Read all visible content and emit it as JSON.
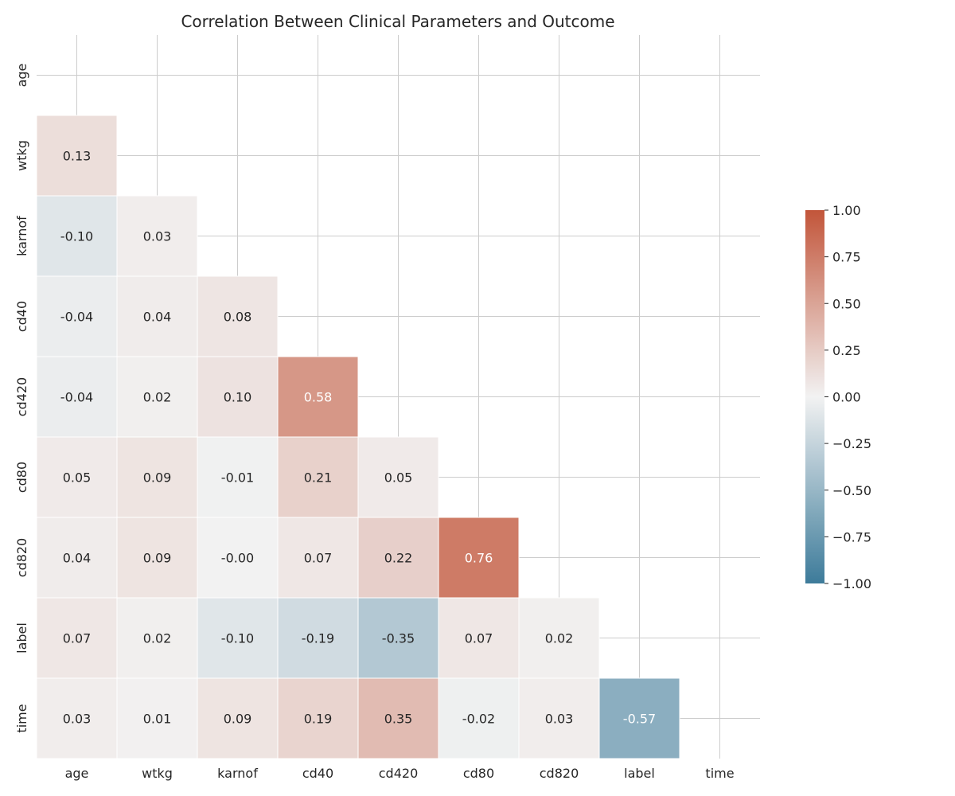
{
  "chart_data": {
    "type": "heatmap",
    "title": "Correlation Between Clinical Parameters and Outcome",
    "xlabel": "",
    "ylabel": "",
    "variables": [
      "age",
      "wtkg",
      "karnof",
      "cd40",
      "cd420",
      "cd80",
      "cd820",
      "label",
      "time"
    ],
    "mask": "upper-triangle-including-diagonal",
    "cells": [
      {
        "row": "wtkg",
        "col": "age",
        "value": 0.13,
        "label": "0.13"
      },
      {
        "row": "karnof",
        "col": "age",
        "value": -0.1,
        "label": "-0.10"
      },
      {
        "row": "karnof",
        "col": "wtkg",
        "value": 0.03,
        "label": "0.03"
      },
      {
        "row": "cd40",
        "col": "age",
        "value": -0.04,
        "label": "-0.04"
      },
      {
        "row": "cd40",
        "col": "wtkg",
        "value": 0.04,
        "label": "0.04"
      },
      {
        "row": "cd40",
        "col": "karnof",
        "value": 0.08,
        "label": "0.08"
      },
      {
        "row": "cd420",
        "col": "age",
        "value": -0.04,
        "label": "-0.04"
      },
      {
        "row": "cd420",
        "col": "wtkg",
        "value": 0.02,
        "label": "0.02"
      },
      {
        "row": "cd420",
        "col": "karnof",
        "value": 0.1,
        "label": "0.10"
      },
      {
        "row": "cd420",
        "col": "cd40",
        "value": 0.58,
        "label": "0.58"
      },
      {
        "row": "cd80",
        "col": "age",
        "value": 0.05,
        "label": "0.05"
      },
      {
        "row": "cd80",
        "col": "wtkg",
        "value": 0.09,
        "label": "0.09"
      },
      {
        "row": "cd80",
        "col": "karnof",
        "value": -0.01,
        "label": "-0.01"
      },
      {
        "row": "cd80",
        "col": "cd40",
        "value": 0.21,
        "label": "0.21"
      },
      {
        "row": "cd80",
        "col": "cd420",
        "value": 0.05,
        "label": "0.05"
      },
      {
        "row": "cd820",
        "col": "age",
        "value": 0.04,
        "label": "0.04"
      },
      {
        "row": "cd820",
        "col": "wtkg",
        "value": 0.09,
        "label": "0.09"
      },
      {
        "row": "cd820",
        "col": "karnof",
        "value": -0.0,
        "label": "-0.00"
      },
      {
        "row": "cd820",
        "col": "cd40",
        "value": 0.07,
        "label": "0.07"
      },
      {
        "row": "cd820",
        "col": "cd420",
        "value": 0.22,
        "label": "0.22"
      },
      {
        "row": "cd820",
        "col": "cd80",
        "value": 0.76,
        "label": "0.76"
      },
      {
        "row": "label",
        "col": "age",
        "value": 0.07,
        "label": "0.07"
      },
      {
        "row": "label",
        "col": "wtkg",
        "value": 0.02,
        "label": "0.02"
      },
      {
        "row": "label",
        "col": "karnof",
        "value": -0.1,
        "label": "-0.10"
      },
      {
        "row": "label",
        "col": "cd40",
        "value": -0.19,
        "label": "-0.19"
      },
      {
        "row": "label",
        "col": "cd420",
        "value": -0.35,
        "label": "-0.35"
      },
      {
        "row": "label",
        "col": "cd80",
        "value": 0.07,
        "label": "0.07"
      },
      {
        "row": "label",
        "col": "cd820",
        "value": 0.02,
        "label": "0.02"
      },
      {
        "row": "time",
        "col": "age",
        "value": 0.03,
        "label": "0.03"
      },
      {
        "row": "time",
        "col": "wtkg",
        "value": 0.01,
        "label": "0.01"
      },
      {
        "row": "time",
        "col": "karnof",
        "value": 0.09,
        "label": "0.09"
      },
      {
        "row": "time",
        "col": "cd40",
        "value": 0.19,
        "label": "0.19"
      },
      {
        "row": "time",
        "col": "cd420",
        "value": 0.35,
        "label": "0.35"
      },
      {
        "row": "time",
        "col": "cd80",
        "value": -0.02,
        "label": "-0.02"
      },
      {
        "row": "time",
        "col": "cd820",
        "value": 0.03,
        "label": "0.03"
      },
      {
        "row": "time",
        "col": "label",
        "value": -0.57,
        "label": "-0.57"
      }
    ],
    "colorbar": {
      "range": [
        -1.0,
        1.0
      ],
      "ticks": [
        1.0,
        0.75,
        0.5,
        0.25,
        0.0,
        -0.25,
        -0.5,
        -0.75,
        -1.0
      ],
      "tick_labels": [
        "1.00",
        "0.75",
        "0.50",
        "0.25",
        "0.00",
        "−0.25",
        "−0.50",
        "−0.75",
        "−1.00"
      ],
      "position": "right"
    },
    "grid": true,
    "colors": {
      "negative": "#3d7b9a",
      "center": "#f2f2f2",
      "positive": "#c2553a",
      "grid": "#cccccc",
      "text_dark": "#262626",
      "text_light": "#ffffff"
    }
  }
}
